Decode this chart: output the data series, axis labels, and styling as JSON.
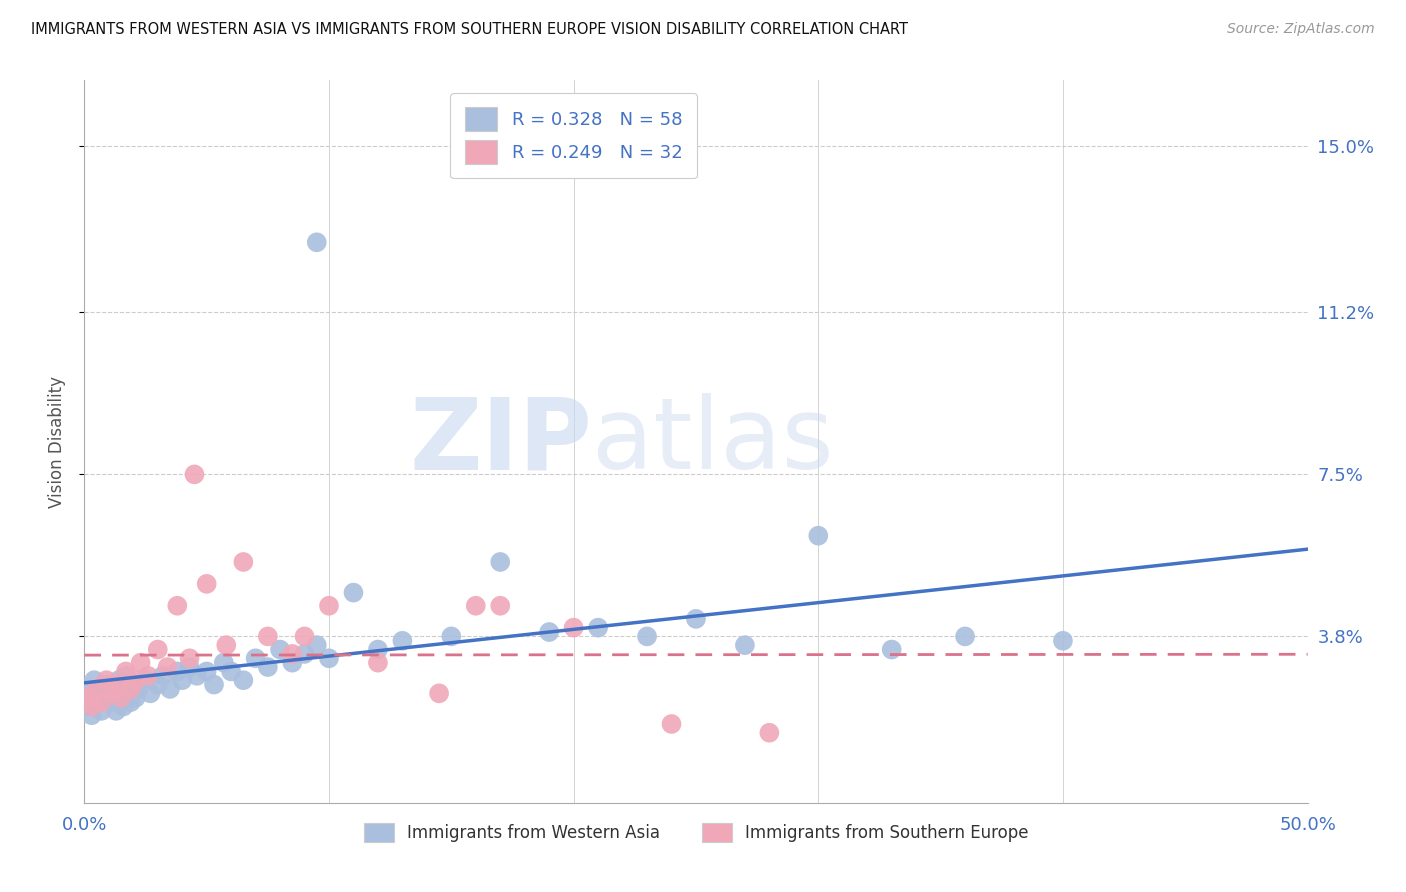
{
  "title": "IMMIGRANTS FROM WESTERN ASIA VS IMMIGRANTS FROM SOUTHERN EUROPE VISION DISABILITY CORRELATION CHART",
  "source": "Source: ZipAtlas.com",
  "ylabel": "Vision Disability",
  "xlim": [
    0.0,
    50.0
  ],
  "ylim": [
    0.0,
    16.5
  ],
  "ytick_vals": [
    3.8,
    7.5,
    11.2,
    15.0
  ],
  "ytick_labels": [
    "3.8%",
    "7.5%",
    "11.2%",
    "15.0%"
  ],
  "xtick_vals": [
    0.0,
    10.0,
    20.0,
    30.0,
    40.0,
    50.0
  ],
  "xtick_labels": [
    "0.0%",
    "",
    "",
    "",
    "",
    "50.0%"
  ],
  "legend_bottom": [
    "Immigrants from Western Asia",
    "Immigrants from Southern Europe"
  ],
  "watermark_zip": "ZIP",
  "watermark_atlas": "atlas",
  "color_blue": "#4472c4",
  "color_pink": "#d9728a",
  "color_blue_scatter": "#aabfdd",
  "color_pink_scatter": "#f0a8b8",
  "blue_N": 58,
  "pink_N": 32,
  "blue_R": 0.328,
  "pink_R": 0.249,
  "grid_color": "#cccccc",
  "blue_x": [
    0.1,
    0.2,
    0.3,
    0.4,
    0.5,
    0.6,
    0.7,
    0.8,
    0.9,
    1.0,
    1.1,
    1.2,
    1.3,
    1.4,
    1.5,
    1.6,
    1.7,
    1.8,
    1.9,
    2.0,
    2.1,
    2.2,
    2.5,
    2.7,
    3.0,
    3.2,
    3.5,
    3.8,
    4.0,
    4.3,
    4.6,
    5.0,
    5.3,
    5.7,
    6.0,
    6.5,
    7.0,
    7.5,
    8.0,
    8.5,
    9.0,
    9.5,
    10.0,
    11.0,
    12.0,
    13.0,
    15.0,
    17.0,
    19.0,
    21.0,
    23.0,
    25.0,
    27.0,
    30.0,
    33.0,
    36.0,
    40.0,
    9.5
  ],
  "blue_y": [
    2.2,
    2.5,
    2.0,
    2.8,
    2.3,
    2.6,
    2.1,
    2.4,
    2.7,
    2.5,
    2.3,
    2.6,
    2.1,
    2.8,
    2.4,
    2.2,
    2.9,
    2.5,
    2.3,
    2.7,
    2.4,
    2.6,
    2.8,
    2.5,
    2.7,
    2.9,
    2.6,
    3.0,
    2.8,
    3.1,
    2.9,
    3.0,
    2.7,
    3.2,
    3.0,
    2.8,
    3.3,
    3.1,
    3.5,
    3.2,
    3.4,
    3.6,
    3.3,
    4.8,
    3.5,
    3.7,
    3.8,
    5.5,
    3.9,
    4.0,
    3.8,
    4.2,
    3.6,
    6.1,
    3.5,
    3.8,
    3.7,
    12.8
  ],
  "pink_x": [
    0.1,
    0.3,
    0.5,
    0.7,
    0.9,
    1.1,
    1.3,
    1.5,
    1.7,
    1.9,
    2.1,
    2.3,
    2.6,
    3.0,
    3.4,
    3.8,
    4.3,
    5.0,
    5.8,
    6.5,
    7.5,
    8.5,
    10.0,
    12.0,
    14.5,
    17.0,
    20.0,
    24.0,
    28.0,
    4.5,
    9.0,
    16.0
  ],
  "pink_y": [
    2.4,
    2.2,
    2.6,
    2.3,
    2.8,
    2.5,
    2.7,
    2.4,
    3.0,
    2.6,
    2.8,
    3.2,
    2.9,
    3.5,
    3.1,
    4.5,
    3.3,
    5.0,
    3.6,
    5.5,
    3.8,
    3.4,
    4.5,
    3.2,
    2.5,
    4.5,
    4.0,
    1.8,
    1.6,
    7.5,
    3.8,
    4.5
  ]
}
